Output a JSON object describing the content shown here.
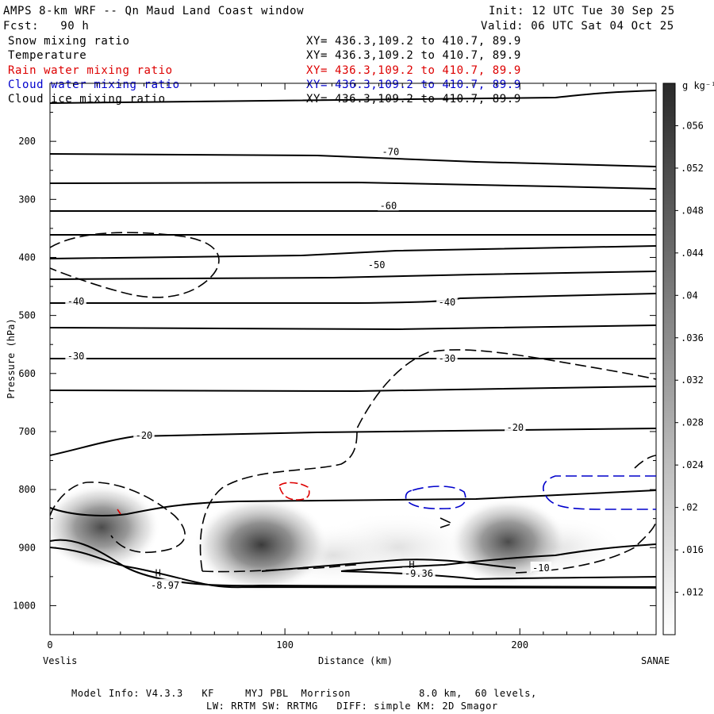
{
  "header": {
    "model_title": "AMPS 8-km WRF -- Qn Maud Land Coast window",
    "init": "Init: 12 UTC Tue 30 Sep 25",
    "fcst": "Fcst:   90 h",
    "valid": "Valid: 06 UTC Sat 04 Oct 25"
  },
  "fields": [
    {
      "name": "Snow mixing ratio",
      "xy": "XY= 436.3,109.2 to 410.7, 89.9",
      "color": "#000000"
    },
    {
      "name": "Temperature",
      "xy": "XY= 436.3,109.2 to 410.7, 89.9",
      "color": "#000000"
    },
    {
      "name": "Rain water mixing ratio",
      "xy": "XY= 436.3,109.2 to 410.7, 89.9",
      "color": "#dd0000"
    },
    {
      "name": "Cloud water mixing ratio",
      "xy": "XY= 436.3,109.2 to 410.7, 89.9",
      "color": "#0000cc"
    },
    {
      "name": "Cloud ice mixing ratio",
      "xy": "XY= 436.3,109.2 to 410.7, 89.9",
      "color": "#000000"
    }
  ],
  "footer": {
    "line1": "Model Info: V4.3.3   KF     MYJ PBL  Morrison           8.0 km,  60 levels,",
    "line2": "LW: RRTM SW: RRTMG   DIFF: simple KM: 2D Smagor"
  },
  "chart_data": {
    "type": "cross-section",
    "xlabel": "Distance (km)",
    "ylabel": "Pressure (hPa)",
    "xlim": [
      0,
      258
    ],
    "ylim": [
      1050,
      100
    ],
    "x_ticks": [
      0,
      100,
      200
    ],
    "y_ticks": [
      200,
      300,
      400,
      500,
      600,
      700,
      800,
      900,
      1000
    ],
    "left_endpoint": "Veslis",
    "right_endpoint": "SANAE",
    "colorbar": {
      "unit": "g kg⁻¹",
      "labels": [
        ".012",
        ".016",
        ".02",
        ".024",
        ".028",
        ".032",
        ".036",
        ".04",
        ".044",
        ".048",
        ".052",
        ".056"
      ],
      "min": 0.008,
      "max": 0.06
    },
    "temperature_labels": [
      {
        "text": "-70",
        "x": 145,
        "p": 218
      },
      {
        "text": "-60",
        "x": 144,
        "p": 311
      },
      {
        "text": "-50",
        "x": 139,
        "p": 413
      },
      {
        "text": "-40",
        "x": 11,
        "p": 476
      },
      {
        "text": "-40",
        "x": 169,
        "p": 477
      },
      {
        "text": "-30",
        "x": 11,
        "p": 570
      },
      {
        "text": "-30",
        "x": 169,
        "p": 574
      },
      {
        "text": "-20",
        "x": 40,
        "p": 707
      },
      {
        "text": "-20",
        "x": 198,
        "p": 693
      },
      {
        "text": "-8.97",
        "x": 49,
        "p": 965
      },
      {
        "text": "-9.36",
        "x": 157,
        "p": 945
      },
      {
        "text": "-10",
        "x": 209,
        "p": 935
      }
    ],
    "extrema": [
      {
        "text": "H",
        "x": 46,
        "p": 944
      },
      {
        "text": "H",
        "x": 154,
        "p": 930
      }
    ],
    "snow_maxima": [
      {
        "x": 22,
        "p": 865,
        "value": 0.046
      },
      {
        "x": 90,
        "p": 895,
        "value": 0.06
      },
      {
        "x": 195,
        "p": 890,
        "value": 0.046
      }
    ]
  }
}
